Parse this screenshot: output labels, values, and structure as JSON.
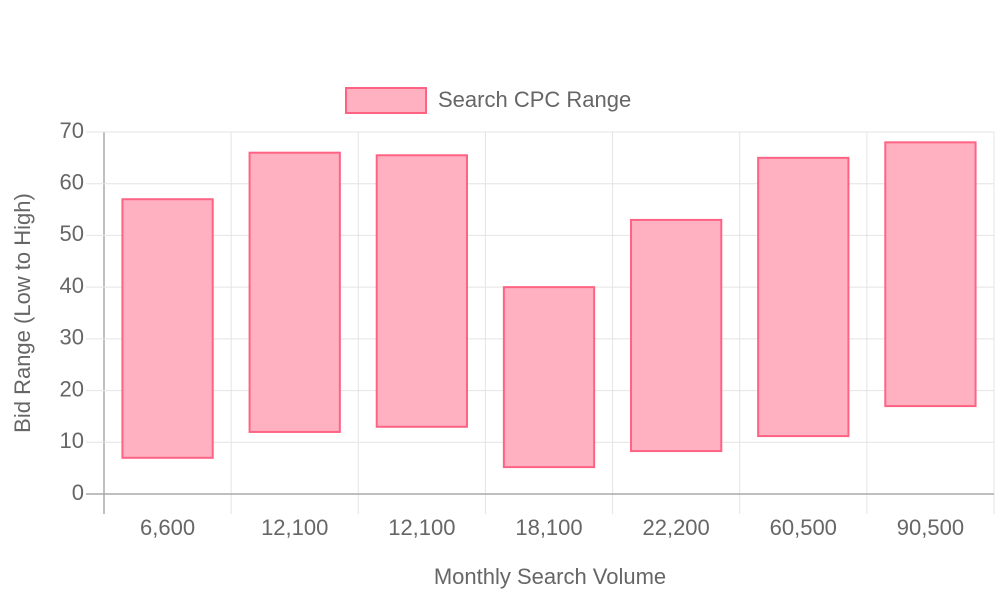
{
  "chart_data": {
    "type": "floating-bar",
    "x_label": "Monthly Search Volume",
    "y_label": "Bid Range (Low to High)",
    "categories": [
      "6,600",
      "12,100",
      "12,100",
      "18,100",
      "22,200",
      "60,500",
      "90,500"
    ],
    "series": [
      {
        "name": "Search CPC Range",
        "color": "#ff6384",
        "values": [
          [
            7,
            57
          ],
          [
            12,
            66
          ],
          [
            13,
            65.5
          ],
          [
            5.2,
            40
          ],
          [
            8.3,
            53
          ],
          [
            11.2,
            65
          ],
          [
            17,
            68
          ]
        ]
      }
    ],
    "ylim": [
      0,
      70
    ],
    "yticks": [
      0,
      10,
      20,
      30,
      40,
      50,
      60,
      70
    ],
    "grid": true,
    "legend": "top"
  }
}
